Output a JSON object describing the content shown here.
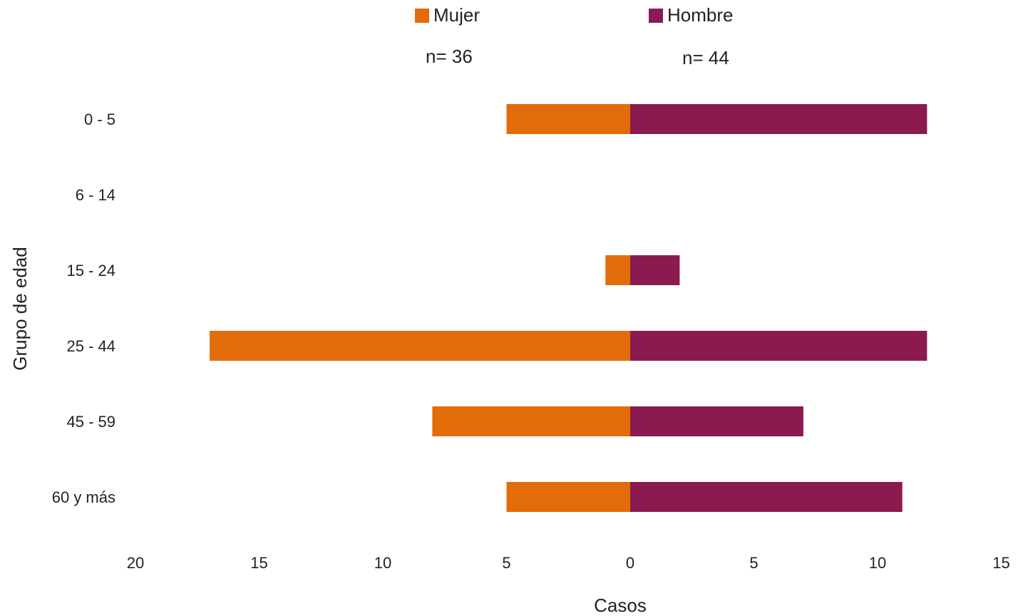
{
  "legend": {
    "mujer_label": "Mujer",
    "hombre_label": "Hombre",
    "mujer_n": "n= 36",
    "hombre_n": "n= 44"
  },
  "colors": {
    "mujer": "#E36C0A",
    "hombre": "#8B1A50"
  },
  "chart_data": {
    "type": "bar",
    "orientation": "horizontal",
    "layout": "diverging (population pyramid)",
    "categories": [
      "0 - 5",
      "6 - 14",
      "15 - 24",
      "25 - 44",
      "45 - 59",
      "60 y más"
    ],
    "series": [
      {
        "name": "Mujer",
        "values": [
          5,
          0,
          1,
          17,
          8,
          5
        ]
      },
      {
        "name": "Hombre",
        "values": [
          12,
          0,
          2,
          12,
          7,
          11
        ]
      }
    ],
    "xlabel": "Casos",
    "ylabel": "Grupo de edad",
    "xlim": [
      -20,
      15
    ],
    "xticks": [
      -20,
      -15,
      -10,
      -5,
      0,
      5,
      10,
      15
    ],
    "xtick_labels": [
      "20",
      "15",
      "10",
      "5",
      "0",
      "5",
      "10",
      "15"
    ],
    "grid": false,
    "legend_position": "top"
  }
}
